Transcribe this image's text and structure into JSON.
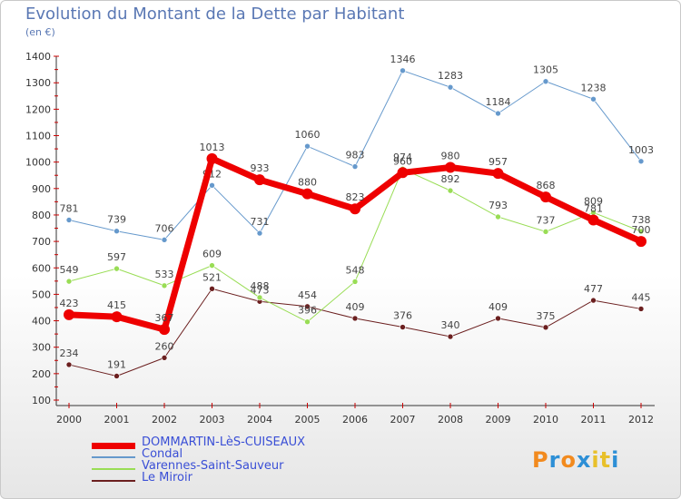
{
  "title": "Evolution du Montant de la Dette par Habitant",
  "unit": "(en €)",
  "logo": "Proxiti",
  "chart_data": {
    "type": "line",
    "x": [
      2000,
      2001,
      2002,
      2003,
      2004,
      2005,
      2006,
      2007,
      2008,
      2009,
      2010,
      2011,
      2012
    ],
    "ylim": [
      100,
      1400
    ],
    "yticks": [
      100,
      200,
      300,
      400,
      500,
      600,
      700,
      800,
      900,
      1000,
      1100,
      1200,
      1300,
      1400
    ],
    "grid": false,
    "legend_placement": "bottom-left",
    "series": [
      {
        "name": "Le Miroir",
        "color": "#6b1f1f",
        "width": 1,
        "values": [
          234,
          191,
          260,
          521,
          473,
          454,
          409,
          376,
          340,
          409,
          375,
          477,
          445
        ]
      },
      {
        "name": "Varennes-Saint-Sauveur",
        "color": "#99dd55",
        "width": 1,
        "values": [
          549,
          597,
          533,
          609,
          488,
          396,
          548,
          974,
          892,
          793,
          737,
          809,
          738
        ]
      },
      {
        "name": "Condal",
        "color": "#6699cc",
        "width": 1,
        "values": [
          781,
          739,
          706,
          912,
          731,
          1060,
          983,
          1346,
          1283,
          1184,
          1305,
          1238,
          1003
        ]
      },
      {
        "name": "DOMMARTIN-LèS-CUISEAUX",
        "color": "#ee0000",
        "width": 7,
        "values": [
          423,
          415,
          367,
          1013,
          933,
          880,
          823,
          960,
          980,
          957,
          868,
          781,
          700
        ]
      }
    ],
    "legend_order": [
      "DOMMARTIN-LèS-CUISEAUX",
      "Condal",
      "Varennes-Saint-Sauveur",
      "Le Miroir"
    ]
  }
}
